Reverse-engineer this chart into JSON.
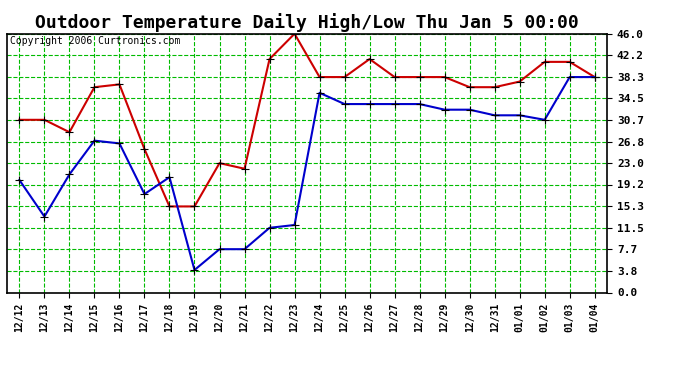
{
  "title": "Outdoor Temperature Daily High/Low Thu Jan 5 00:00",
  "copyright": "Copyright 2006 Curtronics.com",
  "x_labels": [
    "12/12",
    "12/13",
    "12/14",
    "12/15",
    "12/16",
    "12/17",
    "12/18",
    "12/19",
    "12/20",
    "12/21",
    "12/22",
    "12/23",
    "12/24",
    "12/25",
    "12/26",
    "12/27",
    "12/28",
    "12/29",
    "12/30",
    "12/31",
    "01/01",
    "01/02",
    "01/03",
    "01/04"
  ],
  "high_values": [
    30.7,
    30.7,
    28.5,
    36.5,
    37.0,
    25.5,
    15.3,
    15.3,
    23.0,
    22.0,
    41.5,
    46.0,
    38.3,
    38.3,
    41.5,
    38.3,
    38.3,
    38.3,
    36.5,
    36.5,
    37.5,
    41.0,
    41.0,
    38.3
  ],
  "low_values": [
    20.0,
    13.5,
    21.0,
    27.0,
    26.5,
    17.5,
    20.5,
    4.0,
    7.7,
    7.7,
    11.5,
    12.0,
    35.5,
    33.5,
    33.5,
    33.5,
    33.5,
    32.5,
    32.5,
    31.5,
    31.5,
    30.7,
    38.3,
    38.3
  ],
  "y_ticks": [
    0.0,
    3.8,
    7.7,
    11.5,
    15.3,
    19.2,
    23.0,
    26.8,
    30.7,
    34.5,
    38.3,
    42.2,
    46.0
  ],
  "y_min": 0.0,
  "y_max": 46.0,
  "high_color": "#cc0000",
  "low_color": "#0000cc",
  "bg_color": "#ffffff",
  "plot_bg_color": "#ffffff",
  "grid_color": "#00bb00",
  "border_color": "#000000",
  "title_fontsize": 13,
  "marker": "+",
  "marker_size": 6,
  "linewidth": 1.5
}
